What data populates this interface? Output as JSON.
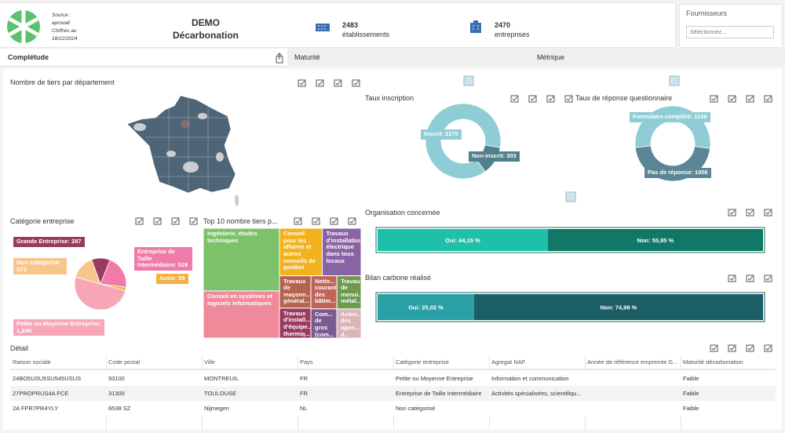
{
  "header": {
    "source": [
      "Source :",
      "aprovall",
      "Chiffres au",
      "18/12/2024"
    ],
    "title": "DEMO",
    "subtitle": "Décarbonation",
    "stats": [
      {
        "value": 2483,
        "label": "établissements"
      },
      {
        "value": 2470,
        "label": "entreprises"
      }
    ],
    "filter": {
      "label": "Fournisseurs",
      "placeholder": "Sélectionnez..."
    }
  },
  "tabs": [
    "Complétude",
    "Maturité",
    "Métrique"
  ],
  "map": {
    "title": "Nombre de tiers par département"
  },
  "charts": [
    {
      "type": "donut",
      "title": "Taux inscription",
      "values": [
        2175,
        303
      ],
      "value_labels": [
        "Inscrit: 2175",
        "Non-inscrit: 303"
      ],
      "colors": [
        "#8ecdd6",
        "#507f8e"
      ]
    },
    {
      "type": "donut",
      "title": "Taux de réponse questionnaire",
      "values": [
        1169,
        1006
      ],
      "value_labels": [
        "Formulaire complété: 1169",
        "Pas de réponse: 1006"
      ],
      "colors": [
        "#8ecdd6",
        "#5b8696"
      ]
    },
    {
      "type": "pie",
      "title": "Catégorie entreprise",
      "values": [
        287,
        519,
        55,
        1240,
        373
      ],
      "value_labels": [
        "Grande Entreprise: 287",
        "Entreprise de Taille Intermédiaire: 519",
        "Autre: 55",
        "Petite ou Moyenne Entreprise: 1,24K",
        "Non catégorisé: 373"
      ],
      "colors": [
        "#9b3a5e",
        "#f07ba8",
        "#f5b042",
        "#f7a6b8",
        "#f7c68c"
      ]
    },
    {
      "type": "treemap",
      "title": "Top 10 nombre tiers p...",
      "categories": [
        "Ingénierie, études techniques",
        "Conseil en systèmes et logiciels informatiques",
        "Conseil pour les affaires et autres conseils de gestion",
        "Travaux d'installation électrique dans tous locaux",
        "Travaux de maçonn... général...",
        "Travaux d'install... d'équipe... thermiq...",
        "Netto... courant des bâtim...",
        "Travaux de menui... métal...",
        "Com... de gros (com... inter...",
        "Activi... des agen... d..."
      ],
      "values": [
        310,
        233,
        132,
        120,
        66,
        61,
        56,
        52,
        49,
        46
      ],
      "colors": [
        "#7cc26b",
        "#ef8a9b",
        "#f2b21d",
        "#8a63a6",
        "#b5634e",
        "#9b3a5e",
        "#c0645a",
        "#6e9a4f",
        "#7b5b8f",
        "#d9b4b8"
      ]
    },
    {
      "type": "stacked-bar",
      "title": "Organisation concernée",
      "values": [
        44.15,
        55.85
      ],
      "value_labels": [
        "Oui: 44,15 %",
        "Non: 55,85 %"
      ],
      "colors": [
        "#1fc0a9",
        "#117766"
      ]
    },
    {
      "type": "stacked-bar",
      "title": "Bilan carbone réalisé",
      "values": [
        25.02,
        74.98
      ],
      "value_labels": [
        "Oui: 25,02 %",
        "Non: 74,98 %"
      ],
      "colors": [
        "#2a9fa6",
        "#1b5e66"
      ]
    }
  ],
  "table": {
    "title": "Détail",
    "columns": [
      "Raison sociale",
      "Code postal",
      "Ville",
      "Pays",
      "Catégorie entreprise",
      "Agregat NAF",
      "Année de référence empreinte G...",
      "Maturité décarbonation"
    ],
    "rows": [
      [
        "24BO5USU5SU545USUS",
        "93100",
        "MONTREUIL",
        "FR",
        "Petite ou Moyenne Entreprise",
        "Information et communication",
        null,
        "Faible"
      ],
      [
        "27PROPRUS4A FCE",
        "31300",
        "TOULOUSE",
        "FR",
        "Entreprise de Taille Intermédiaire",
        "Activités spécialisées, scientifiqu...",
        null,
        "Faible"
      ],
      [
        "2A FPR7PR4YLY",
        "6538 SZ",
        "Nijmegen",
        "NL",
        "Non catégorisé",
        null,
        null,
        "Faible"
      ]
    ]
  }
}
